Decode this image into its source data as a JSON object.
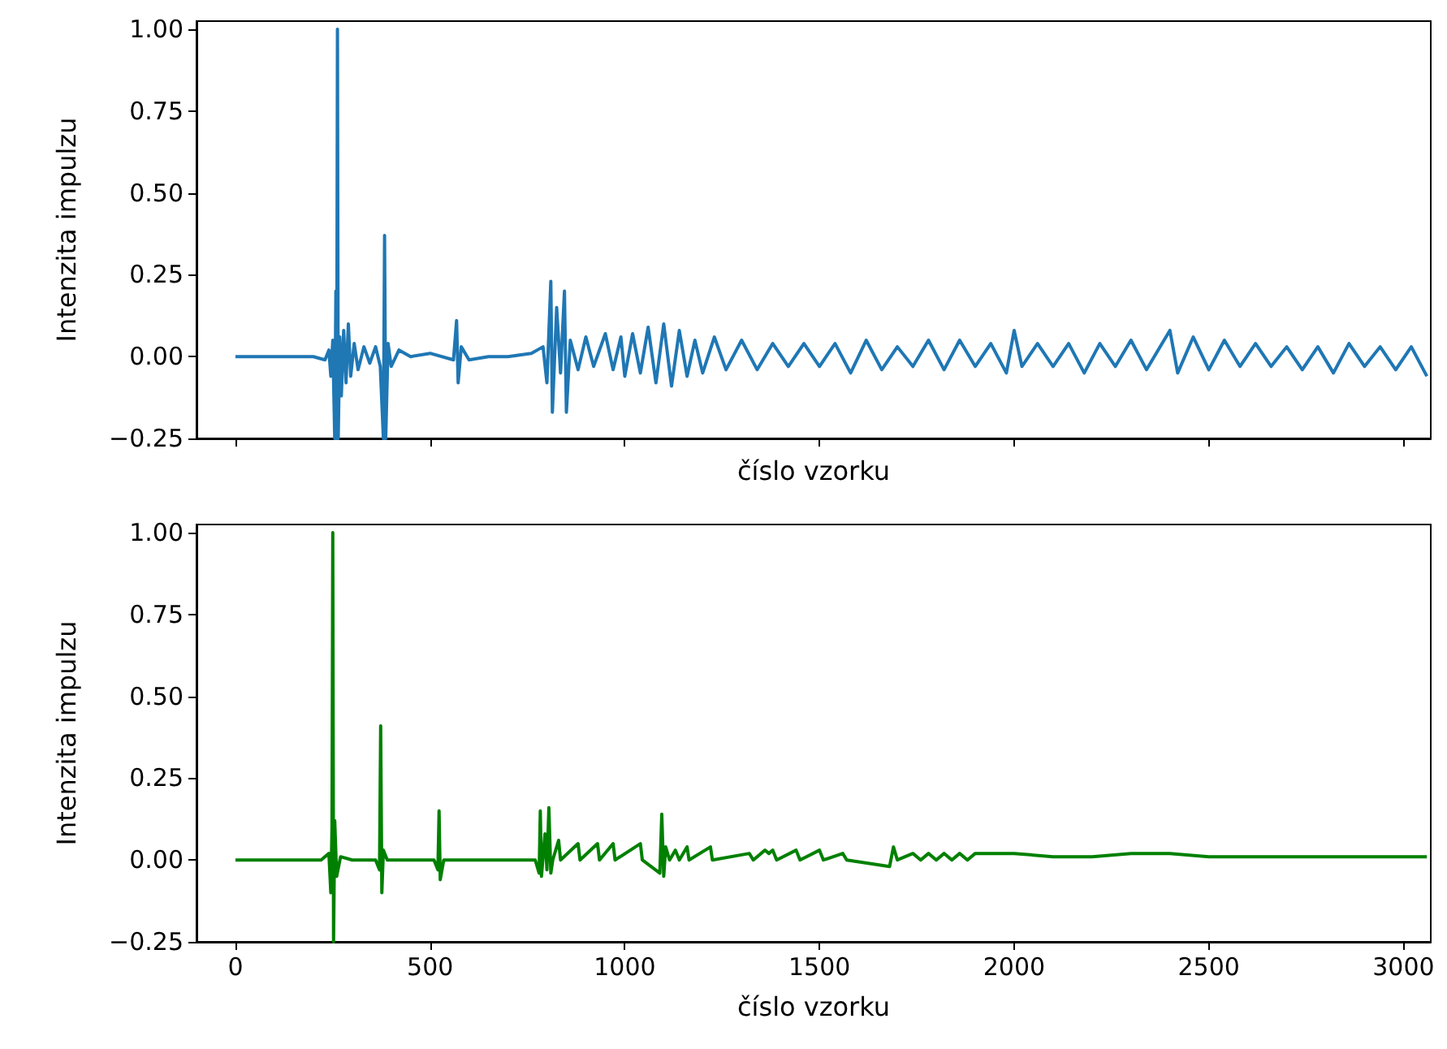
{
  "chart_data": [
    {
      "type": "line",
      "xlabel": "číslo vzorku",
      "ylabel": "Intenzita impulzu",
      "tick_labels": "y",
      "marker": "none",
      "color": "#1f77b4",
      "x": [
        0,
        200,
        230,
        240,
        245,
        250,
        255,
        258,
        260,
        262,
        264,
        268,
        272,
        278,
        284,
        290,
        296,
        305,
        315,
        330,
        345,
        360,
        372,
        380,
        383,
        386,
        392,
        400,
        420,
        450,
        500,
        560,
        568,
        572,
        580,
        600,
        650,
        700,
        760,
        790,
        800,
        810,
        814,
        825,
        835,
        845,
        850,
        860,
        880,
        900,
        920,
        950,
        970,
        990,
        1000,
        1020,
        1040,
        1060,
        1080,
        1100,
        1120,
        1140,
        1160,
        1180,
        1200,
        1230,
        1260,
        1300,
        1340,
        1380,
        1420,
        1460,
        1500,
        1540,
        1580,
        1620,
        1660,
        1700,
        1740,
        1780,
        1820,
        1860,
        1900,
        1940,
        1980,
        2000,
        2020,
        2060,
        2100,
        2140,
        2180,
        2220,
        2260,
        2300,
        2340,
        2380,
        2400,
        2420,
        2460,
        2500,
        2540,
        2580,
        2620,
        2660,
        2700,
        2740,
        2780,
        2820,
        2860,
        2900,
        2940,
        2980,
        3020,
        3060
      ],
      "values": [
        0,
        0,
        -0.01,
        0.02,
        -0.06,
        0.05,
        -0.25,
        0.2,
        -0.25,
        1.0,
        -0.25,
        0.06,
        -0.12,
        0.08,
        -0.08,
        0.1,
        -0.06,
        0.04,
        -0.04,
        0.03,
        -0.02,
        0.03,
        -0.03,
        -0.25,
        0.37,
        -0.25,
        0.04,
        -0.03,
        0.02,
        0.0,
        0.01,
        -0.01,
        0.11,
        -0.08,
        0.03,
        -0.01,
        0.0,
        0.0,
        0.01,
        0.03,
        -0.08,
        0.23,
        -0.17,
        0.15,
        -0.05,
        0.2,
        -0.17,
        0.05,
        -0.04,
        0.06,
        -0.03,
        0.07,
        -0.04,
        0.06,
        -0.06,
        0.07,
        -0.05,
        0.09,
        -0.08,
        0.1,
        -0.09,
        0.08,
        -0.06,
        0.05,
        -0.05,
        0.06,
        -0.04,
        0.05,
        -0.04,
        0.04,
        -0.03,
        0.04,
        -0.03,
        0.04,
        -0.05,
        0.05,
        -0.04,
        0.03,
        -0.03,
        0.05,
        -0.04,
        0.05,
        -0.03,
        0.04,
        -0.05,
        0.08,
        -0.03,
        0.04,
        -0.03,
        0.04,
        -0.05,
        0.04,
        -0.03,
        0.05,
        -0.04,
        0.04,
        0.08,
        -0.05,
        0.06,
        -0.04,
        0.05,
        -0.03,
        0.04,
        -0.03,
        0.03,
        -0.04,
        0.03,
        -0.05,
        0.04,
        -0.03,
        0.03,
        -0.04,
        0.03,
        -0.06
      ],
      "xlim": [
        -100,
        3070
      ],
      "xticks": [
        0,
        500,
        1000,
        1500,
        2000,
        2500,
        3000
      ],
      "ylim": [
        -0.25,
        1.025
      ],
      "yticks": [
        {
          "value": -0.25,
          "label": "−0.25"
        },
        {
          "value": 0,
          "label": "0.00"
        },
        {
          "value": 0.25,
          "label": "0.25"
        },
        {
          "value": 0.5,
          "label": "0.50"
        },
        {
          "value": 0.75,
          "label": "0.75"
        },
        {
          "value": 1,
          "label": "1.00"
        }
      ]
    },
    {
      "type": "line",
      "xlabel": "číslo vzorku",
      "ylabel": "Intenzita impulzu",
      "marker": "none",
      "color": "#008000",
      "x": [
        0,
        220,
        240,
        245,
        248,
        250,
        252,
        255,
        260,
        270,
        300,
        360,
        370,
        373,
        376,
        380,
        390,
        510,
        520,
        523,
        526,
        535,
        770,
        780,
        783,
        786,
        795,
        800,
        805,
        810,
        815,
        830,
        835,
        880,
        885,
        930,
        935,
        970,
        975,
        1040,
        1045,
        1090,
        1095,
        1100,
        1105,
        1115,
        1130,
        1140,
        1160,
        1165,
        1220,
        1225,
        1320,
        1330,
        1360,
        1370,
        1380,
        1390,
        1440,
        1450,
        1500,
        1510,
        1560,
        1570,
        1680,
        1690,
        1700,
        1740,
        1760,
        1780,
        1800,
        1820,
        1840,
        1860,
        1880,
        1900,
        2000,
        2100,
        2200,
        2300,
        2400,
        2500,
        2600,
        2700,
        2800,
        2900,
        3000,
        3060
      ],
      "values": [
        0,
        0,
        0.02,
        -0.1,
        0.1,
        1.0,
        -0.25,
        0.12,
        -0.05,
        0.01,
        0,
        0,
        -0.03,
        0.41,
        -0.1,
        0.03,
        0,
        0,
        -0.03,
        0.15,
        -0.06,
        0,
        0,
        -0.04,
        0.15,
        -0.05,
        0.08,
        -0.03,
        0.16,
        -0.04,
        0,
        0.06,
        0,
        0.05,
        0,
        0.05,
        0,
        0.05,
        0,
        0.05,
        0,
        -0.04,
        0.14,
        -0.05,
        0.04,
        0,
        0.03,
        0,
        0.04,
        0,
        0.04,
        0,
        0.02,
        0,
        0.03,
        0.02,
        0.03,
        0,
        0.03,
        0,
        0.03,
        0,
        0.02,
        0,
        -0.02,
        0.04,
        0,
        0.02,
        0,
        0.02,
        0,
        0.02,
        0,
        0.02,
        0,
        0.02,
        0.02,
        0.01,
        0.01,
        0.02,
        0.02,
        0.01,
        0.01,
        0.01,
        0.01,
        0.01,
        0.01,
        0.01
      ],
      "xlim": [
        -100,
        3070
      ],
      "xticks": [
        0,
        500,
        1000,
        1500,
        2000,
        2500,
        3000
      ],
      "ylim": [
        -0.25,
        1.025
      ],
      "yticks": [
        {
          "value": -0.25,
          "label": "−0.25"
        },
        {
          "value": 0,
          "label": "0.00"
        },
        {
          "value": 0.25,
          "label": "0.25"
        },
        {
          "value": 0.5,
          "label": "0.50"
        },
        {
          "value": 0.75,
          "label": "0.75"
        },
        {
          "value": 1,
          "label": "1.00"
        }
      ]
    }
  ]
}
